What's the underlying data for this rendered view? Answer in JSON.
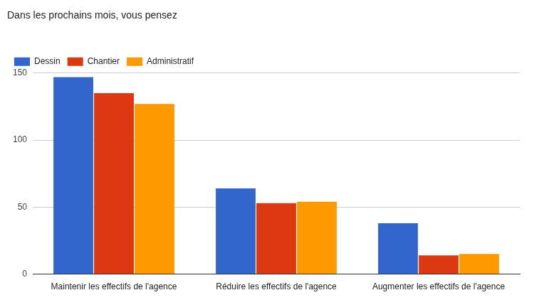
{
  "chart_data": {
    "type": "bar",
    "title": "Dans les prochains mois, vous pensez",
    "categories": [
      "Maintenir les effectifs de l'agence",
      "Réduire les effectifs de l'agence",
      "Augmenter les effectifs de l'agence"
    ],
    "series": [
      {
        "name": "Dessin",
        "color": "#3366cc",
        "values": [
          147,
          64,
          38
        ]
      },
      {
        "name": "Chantier",
        "color": "#dc3912",
        "values": [
          135,
          53,
          14
        ]
      },
      {
        "name": "Administratif",
        "color": "#ff9900",
        "values": [
          127,
          54,
          15
        ]
      }
    ],
    "ylim": [
      0,
      150
    ],
    "yticks": [
      0,
      50,
      100,
      150
    ],
    "grid": true,
    "legend": "top"
  }
}
